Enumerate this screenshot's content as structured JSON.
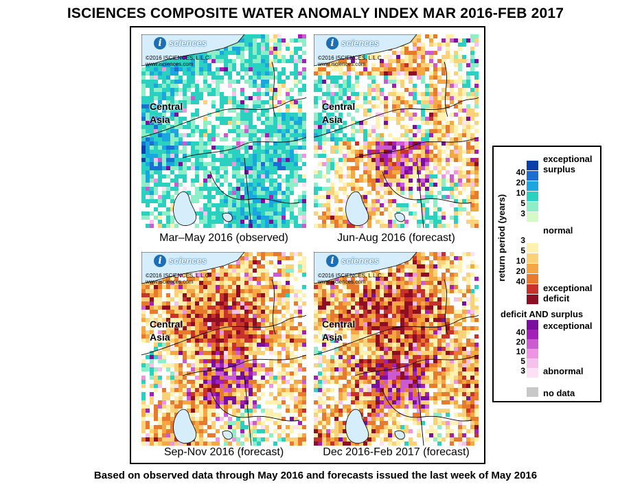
{
  "title": "ISCIENCES COMPOSITE WATER ANOMALY INDEX MAR 2016-FEB 2017",
  "footer": "Based on observed data through May 2016 and forecasts issued the last week of May 2016",
  "logo": {
    "letter": "i",
    "word": "sciences",
    "copyright": "©2016 ISCIENCES, L.L.C.",
    "url": "www.isciences.com"
  },
  "region_label": [
    "Central",
    "Asia"
  ],
  "panels": [
    {
      "caption": "Mar–May 2016 (observed)",
      "scheme": "wet"
    },
    {
      "caption": "Jun-Aug 2016 (forecast)",
      "scheme": "mixed"
    },
    {
      "caption": "Sep-Nov 2016 (forecast)",
      "scheme": "dry"
    },
    {
      "caption": "Dec 2016-Feb 2017 (forecast)",
      "scheme": "dry2"
    }
  ],
  "legend": {
    "axis_label": "return period (years)",
    "exceptional_surplus": [
      "exceptional",
      "surplus"
    ],
    "normal": "normal",
    "exceptional_deficit": [
      "exceptional",
      "deficit"
    ],
    "both_title": "deficit AND surplus",
    "both_exceptional": "exceptional",
    "both_abnormal": "abnormal",
    "no_data": "no data",
    "surplus_ticks": [
      "40",
      "20",
      "10",
      "5",
      "3"
    ],
    "deficit_ticks": [
      "3",
      "5",
      "10",
      "20",
      "40"
    ],
    "both_ticks": [
      "40",
      "20",
      "10",
      "5",
      "3"
    ],
    "surplus_colors": [
      "#0b3fa8",
      "#1a6fd0",
      "#1aa7e0",
      "#2ad0c0",
      "#8eeec8",
      "#d6f9c8"
    ],
    "deficit_colors": [
      "#fff2b0",
      "#fbd27a",
      "#f4a742",
      "#e87a2e",
      "#c8322a",
      "#8e0f24"
    ],
    "both_colors": [
      "#7a0f9e",
      "#a21fb8",
      "#cc5ad0",
      "#ee94e2",
      "#f7c1ee",
      "#fde0f6"
    ],
    "normal_color": "#ffffff",
    "no_data_color": "#c8c8c8"
  }
}
